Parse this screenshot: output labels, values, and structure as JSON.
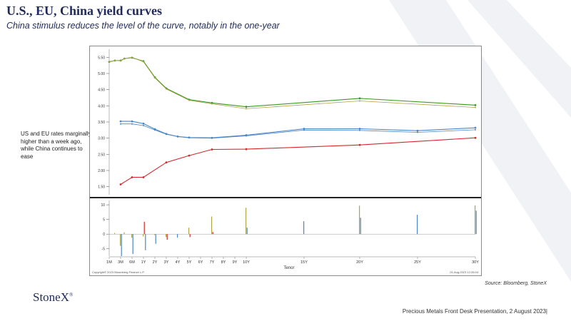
{
  "header": {
    "title": "U.S., EU, China yield curves",
    "subtitle": "China stimulus reduces the level of the curve, notably in the one-year"
  },
  "note": "US and EU rates marginally higher than a week ago, while China continues to ease",
  "source": "Source: Bloomberg, StoneX",
  "logo": "StoneX",
  "footer": "Precious Metals Front Desk Presentation, 2 August 2023|",
  "colors": {
    "accent": "#1f2a5a",
    "green": "#3a9a1f",
    "blue": "#4a86c8",
    "red": "#d9262b",
    "olive": "#b0a24a"
  },
  "chart_data": {
    "type": "line",
    "x": [
      "1M",
      "3M",
      "6M",
      "1Y",
      "2Y",
      "3Y",
      "4Y",
      "5Y",
      "6Y",
      "7Y",
      "8Y",
      "9Y",
      "10Y",
      "15Y",
      "20Y",
      "25Y",
      "30Y"
    ],
    "x_ticks": [
      "1M",
      "3M",
      "6M",
      "1Y",
      "2Y",
      "3Y",
      "4Y",
      "5Y",
      "6Y",
      "7Y",
      "8Y",
      "9Y",
      "10Y",
      "15Y",
      "20Y",
      "25Y",
      "30Y"
    ],
    "xlabel": "Tenor",
    "upper_panel": {
      "ylim": [
        1.25,
        5.75
      ],
      "yticks": [
        "5.50",
        "5.00",
        "4.50",
        "4.00",
        "3.50",
        "3.00",
        "2.50",
        "2.00",
        "1.50"
      ],
      "series": [
        {
          "color": "#3a9a1f",
          "style": "current",
          "points": [
            [
              "1M",
              5.36
            ],
            [
              "2M",
              5.4
            ],
            [
              "3M",
              5.4
            ],
            [
              "4M",
              5.46
            ],
            [
              "6M",
              5.49
            ],
            [
              "1Y",
              5.38
            ],
            [
              "2Y",
              4.88
            ],
            [
              "3Y",
              4.54
            ],
            [
              "5Y",
              4.19
            ],
            [
              "7Y",
              4.09
            ],
            [
              "10Y",
              3.97
            ],
            [
              "20Y",
              4.23
            ],
            [
              "30Y",
              4.02
            ]
          ]
        },
        {
          "color": "#b0a24a",
          "style": "prior",
          "points": [
            [
              "1M",
              5.37
            ],
            [
              "2M",
              5.4
            ],
            [
              "3M",
              5.39
            ],
            [
              "4M",
              5.46
            ],
            [
              "6M",
              5.5
            ],
            [
              "1Y",
              5.36
            ],
            [
              "2Y",
              4.86
            ],
            [
              "3Y",
              4.52
            ],
            [
              "5Y",
              4.17
            ],
            [
              "7Y",
              4.06
            ],
            [
              "10Y",
              3.91
            ],
            [
              "20Y",
              4.15
            ],
            [
              "30Y",
              3.95
            ]
          ]
        },
        {
          "color": "#4a86c8",
          "style": "current",
          "points": [
            [
              "3M",
              3.52
            ],
            [
              "6M",
              3.52
            ],
            [
              "1Y",
              3.45
            ],
            [
              "2Y",
              3.28
            ],
            [
              "3Y",
              3.13
            ],
            [
              "4Y",
              3.05
            ],
            [
              "5Y",
              3.02
            ],
            [
              "7Y",
              3.01
            ],
            [
              "10Y",
              3.09
            ],
            [
              "15Y",
              3.29
            ],
            [
              "20Y",
              3.29
            ],
            [
              "25Y",
              3.23
            ],
            [
              "30Y",
              3.32
            ]
          ]
        },
        {
          "color": "#4a86c8",
          "style": "prior",
          "points": [
            [
              "3M",
              3.44
            ],
            [
              "6M",
              3.44
            ],
            [
              "1Y",
              3.39
            ],
            [
              "2Y",
              3.25
            ],
            [
              "3Y",
              3.12
            ],
            [
              "4Y",
              3.05
            ],
            [
              "5Y",
              3.01
            ],
            [
              "7Y",
              3.0
            ],
            [
              "10Y",
              3.07
            ],
            [
              "15Y",
              3.25
            ],
            [
              "20Y",
              3.24
            ],
            [
              "25Y",
              3.18
            ],
            [
              "30Y",
              3.26
            ]
          ]
        },
        {
          "color": "#d9262b",
          "style": "current",
          "points": [
            [
              "3M",
              1.57
            ],
            [
              "6M",
              1.79
            ],
            [
              "1Y",
              1.79
            ],
            [
              "3Y",
              2.25
            ],
            [
              "5Y",
              2.46
            ],
            [
              "7Y",
              2.65
            ],
            [
              "10Y",
              2.66
            ],
            [
              "20Y",
              2.79
            ],
            [
              "30Y",
              3.01
            ]
          ]
        }
      ]
    },
    "lower_panel": {
      "ylim": [
        -7.5,
        11.5
      ],
      "yticks": [
        "10",
        "5",
        "0",
        "-5"
      ],
      "bars": [
        {
          "color": "#b0a24a",
          "at": "2M",
          "value": 0.4
        },
        {
          "color": "#b0a24a",
          "at": "3M",
          "value": -4.0
        },
        {
          "color": "#4a86c8",
          "at": "3M",
          "value": -7.5
        },
        {
          "color": "#b0a24a",
          "at": "4M",
          "value": 0.6
        },
        {
          "color": "#b0a24a",
          "at": "6M",
          "value": -1.2
        },
        {
          "color": "#4a86c8",
          "at": "6M",
          "value": -6.8
        },
        {
          "color": "#b0a24a",
          "at": "1Y",
          "value": -0.8
        },
        {
          "color": "#d9262b",
          "at": "1Y",
          "value": 4.2
        },
        {
          "color": "#4a86c8",
          "at": "1Y",
          "value": -5.5
        },
        {
          "color": "#b0a24a",
          "at": "2Y",
          "value": -0.3
        },
        {
          "color": "#4a86c8",
          "at": "2Y",
          "value": -3.3
        },
        {
          "color": "#b0a24a",
          "at": "3Y",
          "value": -1.0
        },
        {
          "color": "#d9262b",
          "at": "3Y",
          "value": -1.9
        },
        {
          "color": "#4a86c8",
          "at": "4Y",
          "value": -1.2
        },
        {
          "color": "#b0a24a",
          "at": "5Y",
          "value": 2.2
        },
        {
          "color": "#d9262b",
          "at": "5Y",
          "value": -1.0
        },
        {
          "color": "#b0a24a",
          "at": "7Y",
          "value": 6.0
        },
        {
          "color": "#d9262b",
          "at": "7Y",
          "value": 0.7
        },
        {
          "color": "#b0a24a",
          "at": "10Y",
          "value": 9.0
        },
        {
          "color": "#4a86c8",
          "at": "10Y",
          "value": 2.2
        },
        {
          "color": "#4a86c8",
          "at": "15Y",
          "value": 4.4
        },
        {
          "color": "#b0a24a",
          "at": "20Y",
          "value": 9.7
        },
        {
          "color": "#4a86c8",
          "at": "20Y",
          "value": 5.6
        },
        {
          "color": "#4a86c8",
          "at": "25Y",
          "value": 6.6
        },
        {
          "color": "#b0a24a",
          "at": "30Y",
          "value": 9.8
        },
        {
          "color": "#4a86c8",
          "at": "30Y",
          "value": 8.0
        }
      ]
    },
    "footer_left": "Copyright© 2023 Bloomberg Finance L.P.",
    "footer_right": "01-Aug-2023 12:26:04"
  }
}
